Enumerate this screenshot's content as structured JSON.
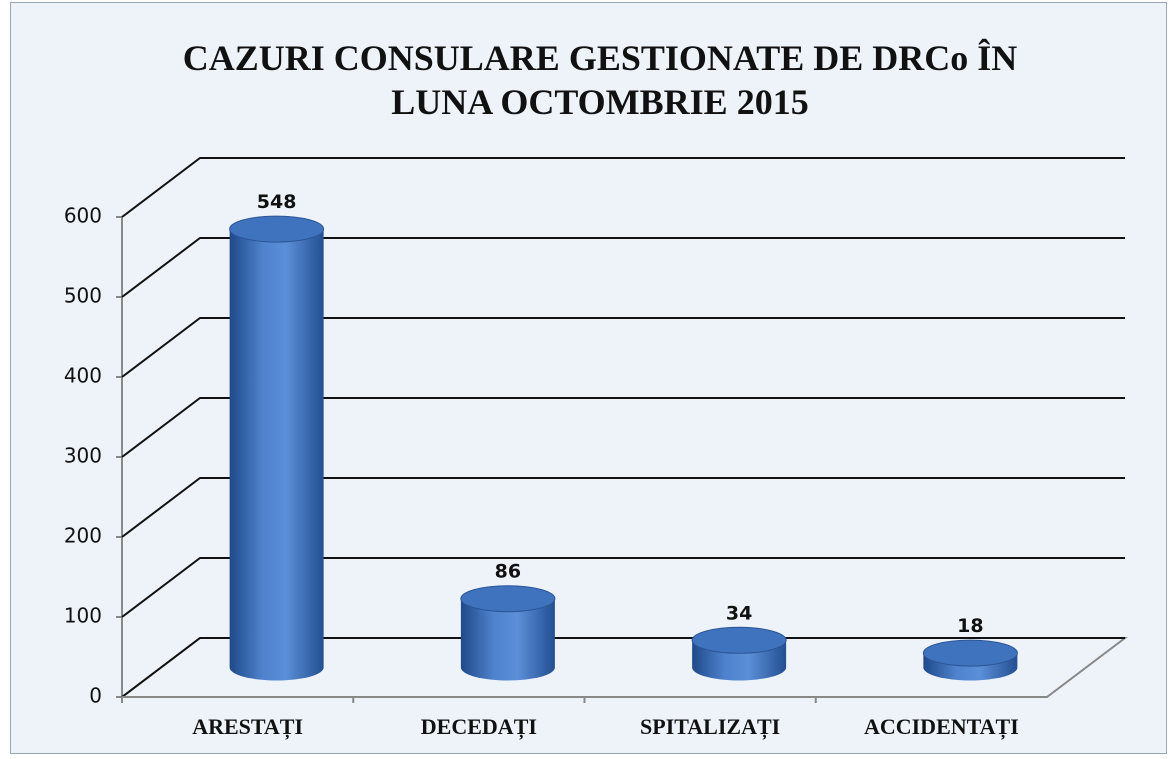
{
  "chart_data": {
    "type": "bar",
    "title": "CAZURI CONSULARE GESTIONATE DE DRCo ÎN LUNA OCTOMBRIE 2015",
    "categories": [
      "ARESTAȚI",
      "DECEDAȚI",
      "SPITALIZAȚI",
      "ACCIDENTAȚI"
    ],
    "values": [
      548,
      86,
      34,
      18
    ],
    "color": "#3f73bd",
    "ylim": [
      0,
      600
    ],
    "yticks": [
      0,
      100,
      200,
      300,
      400,
      500,
      600
    ],
    "grid": true
  }
}
